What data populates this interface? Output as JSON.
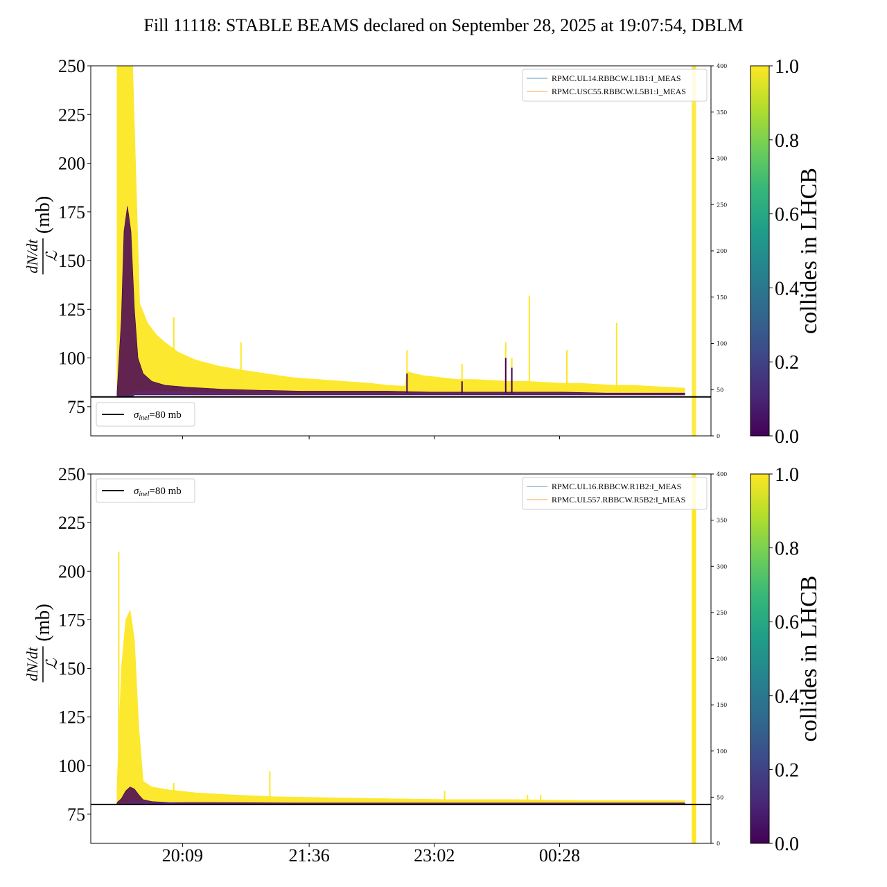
{
  "title": "Fill 11118: STABLE BEAMS declared on September 28, 2025 at 19:07:54, DBLM",
  "colors": {
    "collides_1": "#fde725",
    "collides_0": "#440154",
    "reference_line": "#000000",
    "series_b1": "#1f77b4",
    "series_b2": "#ff7f0e",
    "colormap": [
      "#440154",
      "#482878",
      "#3e4989",
      "#31688e",
      "#26828e",
      "#1f9e89",
      "#35b779",
      "#6ece58",
      "#b5de2b",
      "#fde725"
    ]
  },
  "chart_data": [
    {
      "type": "line",
      "panel": "top",
      "ylabel_fraction_numerator": "dN/dt",
      "ylabel_fraction_denominator": "ℒ",
      "ylabel_unit": "(mb)",
      "ylim": [
        60,
        250
      ],
      "yticks": [
        75,
        100,
        125,
        150,
        175,
        200,
        225,
        250
      ],
      "y2lim": [
        0,
        400
      ],
      "y2ticks": [
        0,
        50,
        100,
        150,
        200,
        250,
        300,
        350,
        400
      ],
      "xticks": [
        "20:09",
        "21:36",
        "23:02",
        "00:28"
      ],
      "xtick_values_hours": [
        20.15,
        21.6,
        23.033,
        24.467
      ],
      "xlim_hours": [
        19.1,
        26.2
      ],
      "reference": {
        "label": "σinel=80 mb",
        "label_sigma": "σ",
        "label_sub": "inel",
        "label_rest": "=80 mb",
        "value": 80
      },
      "legend": [
        "RPMC.UL14.RBBCW.L1B1:I_MEAS",
        "RPMC.USC55.RBBCW.L5B1:I_MEAS"
      ],
      "colorbar": {
        "label": "collides in LHCB",
        "ticks": [
          "0.0",
          "0.2",
          "0.4",
          "0.6",
          "0.8",
          "1.0"
        ],
        "range": [
          0,
          1
        ]
      },
      "series": [
        {
          "name": "collides 1",
          "x_hours": [
            19.4,
            19.45,
            19.5,
            19.58,
            19.66,
            19.75,
            19.85,
            19.95,
            20.1,
            20.3,
            20.55,
            20.8,
            21.1,
            21.4,
            21.7,
            22.0,
            22.3,
            22.5,
            22.7,
            22.72,
            22.9,
            23.1,
            23.3,
            23.5,
            23.7,
            23.9,
            24.1,
            24.3,
            24.5,
            24.7,
            24.9,
            25.1,
            25.3,
            25.5,
            25.7,
            25.9
          ],
          "upper": [
            250,
            250,
            250,
            250,
            128,
            118,
            112,
            108,
            103,
            99,
            96,
            94,
            92,
            90,
            89,
            88,
            87,
            86,
            85.5,
            93,
            91,
            90,
            89,
            89,
            88.5,
            88,
            88,
            87.5,
            87,
            87,
            86.5,
            86,
            86,
            85.5,
            85,
            84.5
          ],
          "lower": [
            81,
            81,
            81,
            82,
            83,
            83,
            83,
            83,
            83,
            82.5,
            82.5,
            82,
            82,
            82,
            82,
            82,
            82,
            82,
            82,
            82,
            82,
            82,
            82,
            82,
            82,
            82,
            82,
            82,
            82,
            82,
            82,
            82,
            82,
            82,
            82,
            82
          ],
          "spikes": [
            [
              20.05,
              121
            ],
            [
              20.82,
              108
            ],
            [
              22.72,
              104
            ],
            [
              23.35,
              97
            ],
            [
              23.85,
              108
            ],
            [
              23.92,
              100
            ],
            [
              24.12,
              132
            ],
            [
              24.55,
              104
            ],
            [
              25.12,
              118
            ]
          ]
        },
        {
          "name": "collides 0",
          "x_hours": [
            19.4,
            19.45,
            19.48,
            19.52,
            19.56,
            19.6,
            19.64,
            19.7,
            19.8,
            19.95,
            20.2,
            20.6,
            21.0,
            21.5,
            22.0,
            22.5,
            23.0,
            23.5,
            24.0,
            24.5,
            25.0,
            25.5,
            25.9
          ],
          "upper": [
            82,
            120,
            165,
            178,
            165,
            125,
            100,
            92,
            88,
            86,
            85,
            84,
            83.5,
            83,
            83,
            83,
            82.5,
            82.5,
            82.5,
            82.5,
            82,
            82,
            82
          ],
          "lower": [
            80,
            80,
            80,
            80,
            80,
            81,
            81,
            81,
            81,
            81,
            81,
            81,
            81,
            81,
            81,
            81,
            81,
            81,
            81,
            81,
            81,
            81,
            81
          ],
          "spikes": [
            [
              22.72,
              92
            ],
            [
              23.35,
              88
            ],
            [
              23.85,
              100
            ],
            [
              23.92,
              95
            ]
          ]
        }
      ],
      "vertical_band_hours": [
        25.98,
        26.03
      ]
    },
    {
      "type": "line",
      "panel": "bottom",
      "ylabel_fraction_numerator": "dN/dt",
      "ylabel_fraction_denominator": "ℒ",
      "ylabel_unit": "(mb)",
      "ylim": [
        60,
        250
      ],
      "yticks": [
        75,
        100,
        125,
        150,
        175,
        200,
        225,
        250
      ],
      "y2lim": [
        0,
        400
      ],
      "y2ticks": [
        0,
        50,
        100,
        150,
        200,
        250,
        300,
        350,
        400
      ],
      "xticks": [
        "20:09",
        "21:36",
        "23:02",
        "00:28"
      ],
      "xtick_values_hours": [
        20.15,
        21.6,
        23.033,
        24.467
      ],
      "xlim_hours": [
        19.1,
        26.2
      ],
      "reference": {
        "label": "σinel=80 mb",
        "label_sigma": "σ",
        "label_sub": "inel",
        "label_rest": "=80 mb",
        "value": 80
      },
      "legend": [
        "RPMC.UL16.RBBCW.R1B2:I_MEAS",
        "RPMC.UL557.RBBCW.R5B2:I_MEAS"
      ],
      "colorbar": {
        "label": "collides in LHCB",
        "ticks": [
          "0.0",
          "0.2",
          "0.4",
          "0.6",
          "0.8",
          "1.0"
        ],
        "range": [
          0,
          1
        ]
      },
      "series": [
        {
          "name": "collides 1",
          "x_hours": [
            19.4,
            19.45,
            19.5,
            19.55,
            19.6,
            19.65,
            19.7,
            19.8,
            20.0,
            20.3,
            20.7,
            21.2,
            21.8,
            22.5,
            23.2,
            24.0,
            24.8,
            25.5,
            25.9
          ],
          "upper": [
            88,
            150,
            175,
            180,
            165,
            120,
            92,
            89,
            87.5,
            86,
            85,
            84,
            83.5,
            83,
            82.5,
            82.5,
            82,
            82,
            82
          ],
          "lower": [
            80.5,
            81,
            81,
            82,
            82,
            82,
            82,
            81.5,
            81.5,
            81,
            81,
            81,
            81,
            81,
            81,
            81,
            81,
            81,
            81
          ],
          "spikes": [
            [
              19.42,
              210
            ],
            [
              20.05,
              91
            ],
            [
              21.15,
              97
            ],
            [
              23.15,
              87
            ],
            [
              24.1,
              85
            ],
            [
              24.25,
              85
            ]
          ]
        },
        {
          "name": "collides 0",
          "x_hours": [
            19.4,
            19.45,
            19.5,
            19.55,
            19.6,
            19.65,
            19.7,
            19.8,
            20.0,
            20.5,
            21.5,
            23.0,
            24.5,
            25.9
          ],
          "upper": [
            81,
            83,
            87,
            89,
            88,
            85,
            82.5,
            81.5,
            81,
            81,
            80.8,
            80.8,
            80.8,
            80.8
          ],
          "lower": [
            80,
            80,
            80,
            80,
            80,
            80,
            80,
            80,
            80,
            80,
            80,
            80,
            80,
            80
          ],
          "spikes": []
        }
      ],
      "vertical_band_hours": [
        25.98,
        26.03
      ]
    }
  ]
}
